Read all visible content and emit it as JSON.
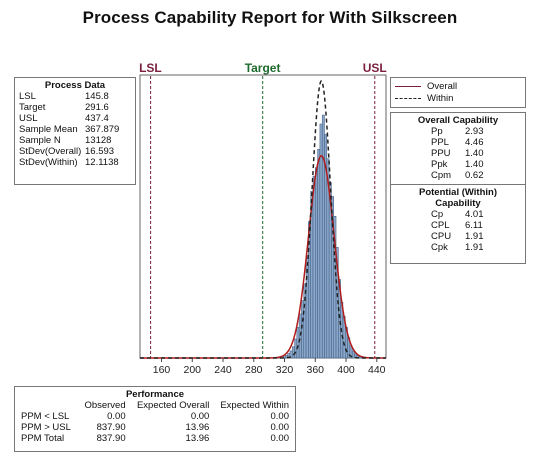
{
  "title": "Process Capability Report for With Silkscreen",
  "spec_labels": {
    "lsl": "LSL",
    "target": "Target",
    "usl": "USL"
  },
  "colors": {
    "lsl": "#7a1f3d",
    "target": "#1e6b2e",
    "usl": "#7a1f3d",
    "bars": "#8aa6c8",
    "bar_edge": "#3d5a80",
    "overall_curve": "#b01c1c",
    "within_curve": "#222222"
  },
  "process_data": {
    "header": "Process Data",
    "rows": [
      {
        "label": "LSL",
        "value": "145.8"
      },
      {
        "label": "Target",
        "value": "291.6"
      },
      {
        "label": "USL",
        "value": "437.4"
      },
      {
        "label": "Sample Mean",
        "value": "367.879"
      },
      {
        "label": "Sample N",
        "value": "13128"
      },
      {
        "label": "StDev(Overall)",
        "value": "16.593"
      },
      {
        "label": "StDev(Within)",
        "value": "12.1138"
      }
    ]
  },
  "legend": {
    "overall": "Overall",
    "within": "Within"
  },
  "overall_capability": {
    "header": "Overall Capability",
    "rows": [
      {
        "label": "Pp",
        "value": "2.93"
      },
      {
        "label": "PPL",
        "value": "4.46"
      },
      {
        "label": "PPU",
        "value": "1.40"
      },
      {
        "label": "Ppk",
        "value": "1.40"
      },
      {
        "label": "Cpm",
        "value": "0.62"
      }
    ]
  },
  "within_capability": {
    "header": "Potential (Within) Capability",
    "rows": [
      {
        "label": "Cp",
        "value": "4.01"
      },
      {
        "label": "CPL",
        "value": "6.11"
      },
      {
        "label": "CPU",
        "value": "1.91"
      },
      {
        "label": "Cpk",
        "value": "1.91"
      }
    ]
  },
  "performance": {
    "header": "Performance",
    "columns": [
      "Observed",
      "Expected Overall",
      "Expected Within"
    ],
    "rows": [
      {
        "label": "PPM < LSL",
        "values": [
          "0.00",
          "0.00",
          "0.00"
        ]
      },
      {
        "label": "PPM > USL",
        "values": [
          "837.90",
          "13.96",
          "0.00"
        ]
      },
      {
        "label": "PPM Total",
        "values": [
          "837.90",
          "13.96",
          "0.00"
        ]
      }
    ]
  },
  "chart_data": {
    "type": "histogram",
    "xlim": [
      132,
      452
    ],
    "x_ticks": [
      160,
      200,
      240,
      280,
      320,
      360,
      400,
      440
    ],
    "x_tick_labels": [
      "160",
      "200",
      "240",
      "280",
      "320",
      "360",
      "400",
      "440"
    ],
    "bin_width": 3,
    "lsl": 145.8,
    "target": 291.6,
    "usl": 437.4,
    "mean": 367.879,
    "n": 13128,
    "stdev_overall": 16.593,
    "stdev_within": 12.1138,
    "series": [
      {
        "name": "Overall",
        "kind": "normal_curve",
        "mean": 367.879,
        "sd": 16.593
      },
      {
        "name": "Within",
        "kind": "normal_curve",
        "mean": 367.879,
        "sd": 12.1138
      }
    ]
  }
}
